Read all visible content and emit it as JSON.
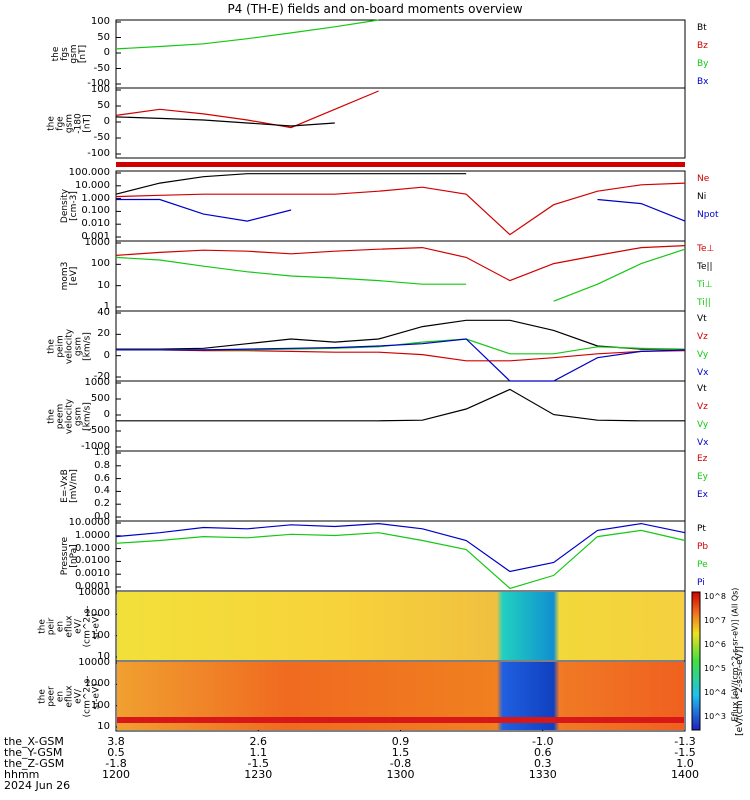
{
  "title": "P4 (TH-E) fields and on-board moments overview",
  "colors": {
    "black": "#000000",
    "red": "#d10000",
    "green": "#14c814",
    "blue": "#0000c8",
    "grey": "#888888"
  },
  "panels": [
    {
      "id": "fgs",
      "ylabel": [
        "the",
        "fgs",
        "gsm",
        "[nT]"
      ],
      "yticks": [
        "100",
        "50",
        "0",
        "-50",
        "-100"
      ],
      "legend": [
        {
          "text": "Bt",
          "color": "black"
        },
        {
          "text": "Bz",
          "color": "red"
        },
        {
          "text": "By",
          "color": "green"
        },
        {
          "text": "Bx",
          "color": "blue"
        }
      ]
    },
    {
      "id": "fge",
      "ylabel": [
        "the",
        "fge",
        "gsm",
        "-180",
        "[nT]"
      ],
      "yticks": [
        "100",
        "50",
        "0",
        "-50",
        "-100"
      ],
      "legend": []
    },
    {
      "id": "density",
      "ylabel": [
        "Density",
        "[cm-3]"
      ],
      "yticks": [
        "100.000",
        "10.000",
        "1.000",
        "0.100",
        "0.010",
        "0.001"
      ],
      "legend": [
        {
          "text": "Ne",
          "color": "red"
        },
        {
          "text": "Ni",
          "color": "black"
        },
        {
          "text": "Npot",
          "color": "blue"
        }
      ]
    },
    {
      "id": "temp",
      "ylabel": [
        "mom3",
        "[eV]"
      ],
      "yticks": [
        "1000",
        "100",
        "10",
        "1"
      ],
      "legend": [
        {
          "text": "Te⊥",
          "color": "red"
        },
        {
          "text": "Te||",
          "color": "black"
        },
        {
          "text": "Ti⊥",
          "color": "green"
        },
        {
          "text": "Ti||",
          "color": "green"
        }
      ]
    },
    {
      "id": "vi",
      "ylabel": [
        "the",
        "peim",
        "velocity",
        "gsm",
        "[km/s]"
      ],
      "yticks": [
        "40",
        "20",
        "0",
        "-20"
      ],
      "legend": [
        {
          "text": "Vt",
          "color": "black"
        },
        {
          "text": "Vz",
          "color": "red"
        },
        {
          "text": "Vy",
          "color": "green"
        },
        {
          "text": "Vx",
          "color": "blue"
        }
      ]
    },
    {
      "id": "ve",
      "ylabel": [
        "the",
        "peem",
        "velocity",
        "gsm",
        "[km/s]"
      ],
      "yticks": [
        "1000",
        "500",
        "0",
        "-500",
        "-1000"
      ],
      "legend": [
        {
          "text": "Vt",
          "color": "black"
        },
        {
          "text": "Vz",
          "color": "red"
        },
        {
          "text": "Vy",
          "color": "green"
        },
        {
          "text": "Vx",
          "color": "blue"
        }
      ]
    },
    {
      "id": "efield",
      "ylabel": [
        "E=-VxB",
        "[mV/m]"
      ],
      "yticks": [
        "1.0",
        "0.8",
        "0.6",
        "0.4",
        "0.2",
        "0.0"
      ],
      "legend": [
        {
          "text": "Ez",
          "color": "red"
        },
        {
          "text": "Ey",
          "color": "green"
        },
        {
          "text": "Ex",
          "color": "blue"
        }
      ]
    },
    {
      "id": "pressure",
      "ylabel": [
        "Pressure",
        "[nPa]"
      ],
      "yticks": [
        "10.0000",
        "1.0000",
        "0.1000",
        "0.0100",
        "0.0010",
        "0.0001"
      ],
      "legend": [
        {
          "text": "Pt",
          "color": "black"
        },
        {
          "text": "Pb",
          "color": "red"
        },
        {
          "text": "Pe",
          "color": "green"
        },
        {
          "text": "Pi",
          "color": "blue"
        }
      ]
    },
    {
      "id": "ispec",
      "ylabel": [
        "the",
        "peir",
        "en",
        "eflux",
        "eV/",
        "(cm^2-s-",
        "sr-eV)"
      ],
      "yticks": [
        "10000",
        "1000",
        "100",
        "10"
      ],
      "legend": []
    },
    {
      "id": "espec",
      "ylabel": [
        "the",
        "peer",
        "en",
        "eflux",
        "eV/",
        "(cm^2-s-",
        "sr-eV)"
      ],
      "yticks": [
        "10000",
        "1000",
        "100",
        "10"
      ],
      "legend": []
    }
  ],
  "colorbar": {
    "ticks": [
      "10^8",
      "10^7",
      "10^6",
      "10^5",
      "10^4",
      "10^3"
    ],
    "label": "[eV/(cm^2-s-sr-eV)]",
    "label_alt": "Eflux [eV/(cm^2-s-sr-eV)] (All Qs)"
  },
  "chart_data": {
    "type": "line",
    "x_ticks": [
      "1200",
      "1230",
      "1300",
      "1330",
      "1400"
    ],
    "x": [
      "12:00",
      "12:10",
      "12:20",
      "12:30",
      "12:40",
      "12:50",
      "13:00",
      "13:10",
      "13:20",
      "13:25",
      "13:30",
      "13:40",
      "13:50",
      "14:00"
    ],
    "fgs_By": [
      15,
      22,
      30,
      45,
      62,
      80,
      100,
      null,
      null,
      null,
      null,
      null,
      null,
      null
    ],
    "fge_Bz": [
      10,
      30,
      15,
      -5,
      -30,
      30,
      90,
      null,
      null,
      null,
      null,
      null,
      null,
      null
    ],
    "fge_Bt": [
      5,
      0,
      -5,
      -15,
      -25,
      -15,
      null,
      null,
      null,
      null,
      null,
      null,
      null,
      null
    ],
    "density_Ne": [
      2,
      2.5,
      3,
      3,
      3,
      3,
      5,
      10,
      3,
      0.003,
      0.5,
      5,
      15,
      20
    ],
    "density_Ni": [
      3,
      20,
      60,
      100,
      100,
      100,
      100,
      100,
      100,
      null,
      null,
      null,
      null,
      null
    ],
    "density_Npot": [
      1.2,
      1.2,
      0.1,
      0.03,
      0.2,
      null,
      null,
      null,
      null,
      null,
      null,
      1.2,
      0.6,
      0.03
    ],
    "temp_Te": [
      500,
      700,
      900,
      800,
      600,
      800,
      1000,
      1200,
      400,
      30,
      200,
      500,
      1200,
      1500
    ],
    "temp_Ti": [
      400,
      300,
      150,
      80,
      50,
      40,
      30,
      20,
      20,
      null,
      3,
      20,
      200,
      1000
    ],
    "vi_Vt": [
      1,
      1,
      2,
      8,
      14,
      10,
      14,
      30,
      38,
      38,
      25,
      5,
      1,
      1
    ],
    "vi_Vz": [
      0,
      0,
      -1,
      -1,
      -2,
      -3,
      -3,
      -6,
      -14,
      -14,
      -10,
      -5,
      -2,
      -1
    ],
    "vi_Vy": [
      0,
      0,
      0,
      0,
      1,
      2,
      4,
      10,
      14,
      -5,
      -5,
      4,
      2,
      1
    ],
    "vi_Vx": [
      0,
      0,
      0,
      1,
      2,
      3,
      5,
      8,
      14,
      -40,
      -40,
      -10,
      -2,
      0
    ],
    "ve_Vt": [
      80,
      80,
      80,
      80,
      80,
      80,
      80,
      100,
      500,
      1200,
      300,
      100,
      80,
      80
    ],
    "pressure_Pt": [
      1,
      2,
      5,
      4,
      8,
      6,
      10,
      4,
      0.5,
      0.002,
      0.01,
      3,
      10,
      2
    ],
    "pressure_Pe": [
      0.3,
      0.5,
      1,
      0.8,
      1.5,
      1.2,
      2,
      0.5,
      0.1,
      0.0001,
      0.001,
      1,
      3,
      0.5
    ],
    "orbit": {
      "labels": [
        "the_X-GSM",
        "the_Y-GSM",
        "the_Z-GSM",
        "hhmm",
        "2024 Jun 26"
      ],
      "columns": [
        {
          "x": "3.8",
          "y": "0.5",
          "z": "-1.8",
          "hhmm": "1200"
        },
        {
          "x": "2.6",
          "y": "1.1",
          "z": "-1.5",
          "hhmm": "1230"
        },
        {
          "x": "0.9",
          "y": "1.5",
          "z": "-0.8",
          "hhmm": "1300"
        },
        {
          "x": "-1.0",
          "y": "0.6",
          "z": "0.3",
          "hhmm": "1330"
        },
        {
          "x": "-1.3",
          "y": "-1.5",
          "z": "1.0",
          "hhmm": "1400"
        }
      ]
    }
  }
}
